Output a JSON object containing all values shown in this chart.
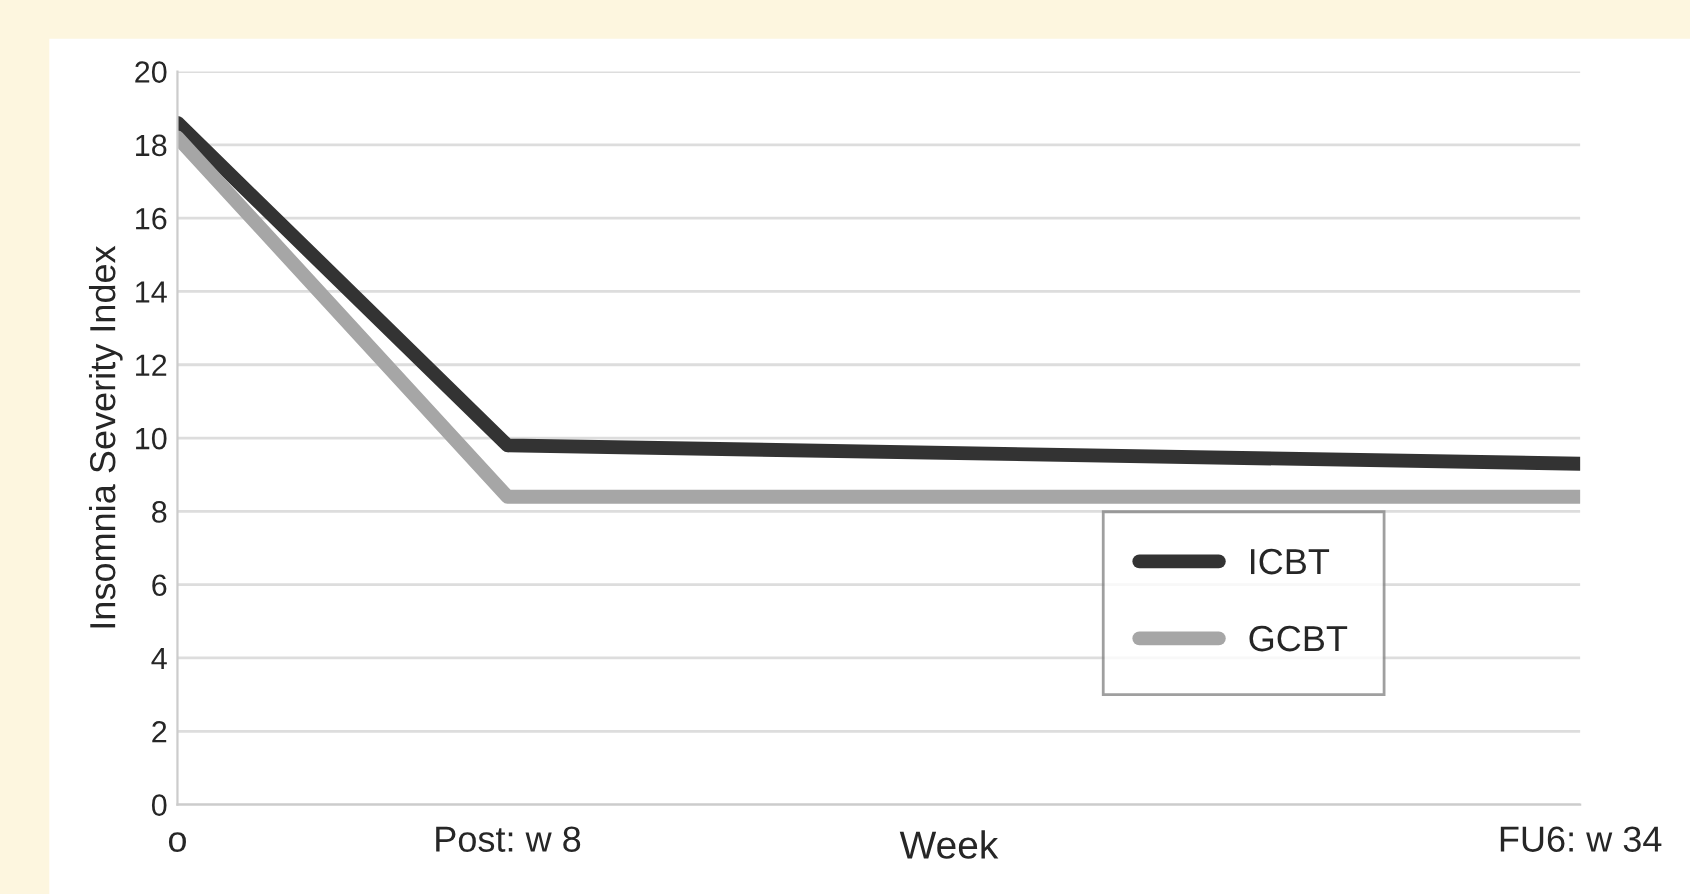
{
  "chart_data": {
    "type": "line",
    "xlabel": "Week",
    "ylabel": "Insomnia Severity Index",
    "categories": [
      "o",
      null,
      null,
      null,
      null,
      null,
      null,
      null,
      "Post: w 8",
      null,
      null,
      null,
      null,
      null,
      null,
      null,
      null,
      null,
      null,
      null,
      null,
      null,
      null,
      null,
      null,
      null,
      null,
      null,
      null,
      null,
      null,
      null,
      null,
      null,
      "FU6: w 34"
    ],
    "series": [
      {
        "name": "ICBT",
        "color": "#333333",
        "values": [
          18.6,
          null,
          null,
          null,
          null,
          null,
          null,
          null,
          9.8,
          null,
          null,
          null,
          null,
          null,
          null,
          null,
          null,
          null,
          null,
          null,
          null,
          null,
          null,
          null,
          null,
          null,
          null,
          null,
          null,
          null,
          null,
          null,
          null,
          null,
          9.3
        ]
      },
      {
        "name": "GCBT",
        "color": "#a6a6a6",
        "values": [
          18.2,
          null,
          null,
          null,
          null,
          null,
          null,
          null,
          8.4,
          null,
          null,
          null,
          null,
          null,
          null,
          null,
          null,
          null,
          null,
          null,
          null,
          null,
          null,
          null,
          null,
          null,
          null,
          null,
          null,
          null,
          null,
          null,
          null,
          null,
          8.4
        ]
      }
    ],
    "ylim": [
      0,
      20
    ],
    "yticks": [
      0,
      2,
      4,
      6,
      8,
      10,
      12,
      14,
      16,
      18,
      20
    ],
    "grid": "y",
    "legend": "bottom right",
    "marker": "none",
    "line_style": "solid"
  }
}
